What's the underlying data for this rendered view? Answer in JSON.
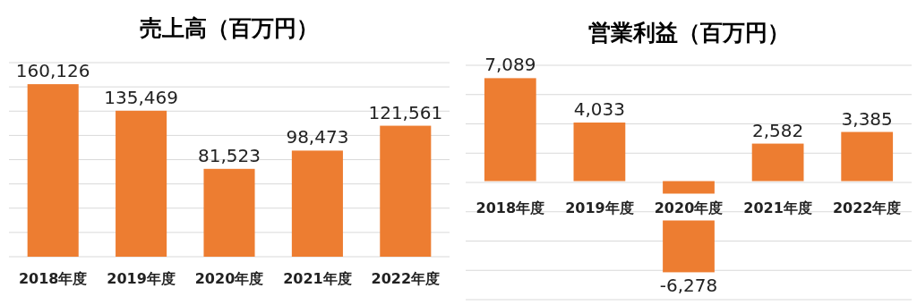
{
  "chart_data": [
    {
      "type": "bar",
      "title": "売上高（百万円）",
      "categories": [
        "2018年度",
        "2019年度",
        "2020年度",
        "2021年度",
        "2022年度"
      ],
      "values": [
        160126,
        135469,
        81523,
        98473,
        121561
      ],
      "value_labels": [
        "160,126",
        "135,469",
        "81,523",
        "98,473",
        "121,561"
      ],
      "color": "#ed7d31",
      "grid": "y",
      "tick_labels": "x"
    },
    {
      "type": "bar",
      "title": "営業利益（百万円）",
      "categories": [
        "2018年度",
        "2019年度",
        "2020年度",
        "2021年度",
        "2022年度"
      ],
      "values": [
        7089,
        4033,
        -6278,
        2582,
        3385
      ],
      "value_labels": [
        "7,089",
        "4,033",
        "-6,278",
        "2,582",
        "3,385"
      ],
      "color": "#ed7d31",
      "grid": "y",
      "tick_labels": "x"
    }
  ]
}
